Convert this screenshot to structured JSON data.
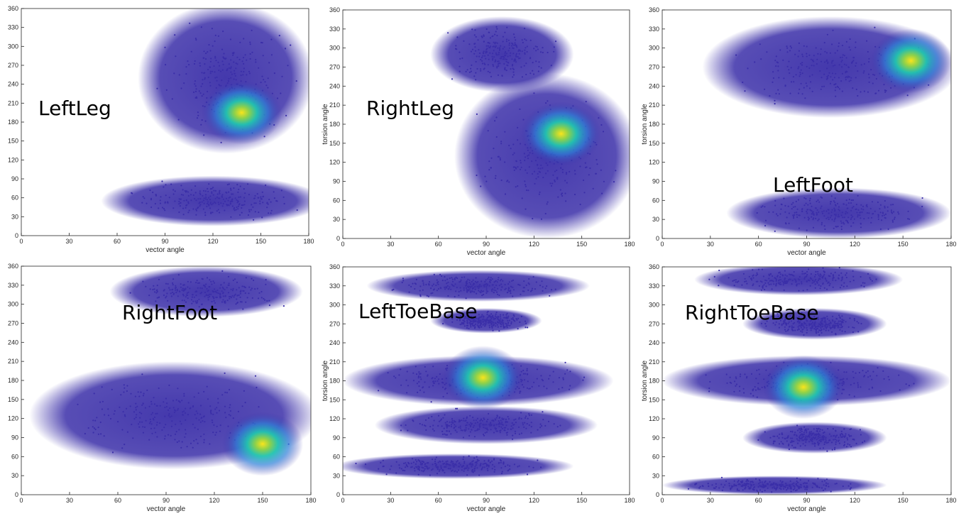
{
  "chart_data": [
    {
      "type": "scatter",
      "title": "LeftLeg",
      "xlabel": "vector angle",
      "ylabel": "",
      "xlim": [
        0,
        180
      ],
      "ylim": [
        0,
        360
      ],
      "xticks": [
        "0",
        "30",
        "60",
        "90",
        "120",
        "150",
        "180"
      ],
      "yticks": [
        "0",
        "30",
        "60",
        "90",
        "120",
        "150",
        "180",
        "210",
        "240",
        "270",
        "300",
        "330",
        "360"
      ],
      "density_peak": {
        "x": 138,
        "y": 195
      },
      "grid": false
    },
    {
      "type": "scatter",
      "title": "RightLeg",
      "xlabel": "vector angle",
      "ylabel": "torsion angle",
      "xlim": [
        0,
        180
      ],
      "ylim": [
        0,
        360
      ],
      "xticks": [
        "0",
        "30",
        "60",
        "90",
        "120",
        "150",
        "180"
      ],
      "yticks": [
        "0",
        "30",
        "60",
        "90",
        "120",
        "150",
        "180",
        "210",
        "240",
        "270",
        "300",
        "330",
        "360"
      ],
      "density_peak": {
        "x": 137,
        "y": 165
      },
      "grid": false
    },
    {
      "type": "scatter",
      "title": "LeftFoot",
      "xlabel": "vector angle",
      "ylabel": "torsion angle",
      "xlim": [
        0,
        180
      ],
      "ylim": [
        0,
        360
      ],
      "xticks": [
        "0",
        "30",
        "60",
        "90",
        "120",
        "150",
        "180"
      ],
      "yticks": [
        "0",
        "30",
        "60",
        "90",
        "120",
        "150",
        "180",
        "210",
        "240",
        "270",
        "300",
        "330",
        "360"
      ],
      "density_peak": {
        "x": 155,
        "y": 280
      },
      "grid": false
    },
    {
      "type": "scatter",
      "title": "RightFoot",
      "xlabel": "vector angle",
      "ylabel": "",
      "xlim": [
        0,
        180
      ],
      "ylim": [
        0,
        360
      ],
      "xticks": [
        "0",
        "30",
        "60",
        "90",
        "120",
        "150",
        "180"
      ],
      "yticks": [
        "0",
        "30",
        "60",
        "90",
        "120",
        "150",
        "180",
        "210",
        "240",
        "270",
        "300",
        "330",
        "360"
      ],
      "density_peak": {
        "x": 150,
        "y": 80
      },
      "grid": false
    },
    {
      "type": "scatter",
      "title": "LeftToeBase",
      "xlabel": "vector angle",
      "ylabel": "torsion angle",
      "xlim": [
        0,
        180
      ],
      "ylim": [
        0,
        360
      ],
      "xticks": [
        "0",
        "30",
        "60",
        "90",
        "120",
        "150",
        "180"
      ],
      "yticks": [
        "0",
        "30",
        "60",
        "90",
        "120",
        "150",
        "180",
        "210",
        "240",
        "270",
        "300",
        "330",
        "360"
      ],
      "density_peak": {
        "x": 88,
        "y": 185
      },
      "grid": false
    },
    {
      "type": "scatter",
      "title": "RightToeBase",
      "xlabel": "vector angle",
      "ylabel": "torsion angle",
      "xlim": [
        0,
        180
      ],
      "ylim": [
        0,
        360
      ],
      "xticks": [
        "0",
        "30",
        "60",
        "90",
        "120",
        "150",
        "180"
      ],
      "yticks": [
        "0",
        "30",
        "60",
        "90",
        "120",
        "150",
        "180",
        "210",
        "240",
        "270",
        "300",
        "330",
        "360"
      ],
      "density_peak": {
        "x": 88,
        "y": 170
      },
      "grid": false
    }
  ],
  "colors": {
    "scatter_low": "#3a2ea8",
    "scatter_mid": "#2c7fd8",
    "density_cyan": "#21c4b0",
    "density_green": "#8fd14a",
    "density_peak": "#f9e41c",
    "axis": "#262626"
  }
}
